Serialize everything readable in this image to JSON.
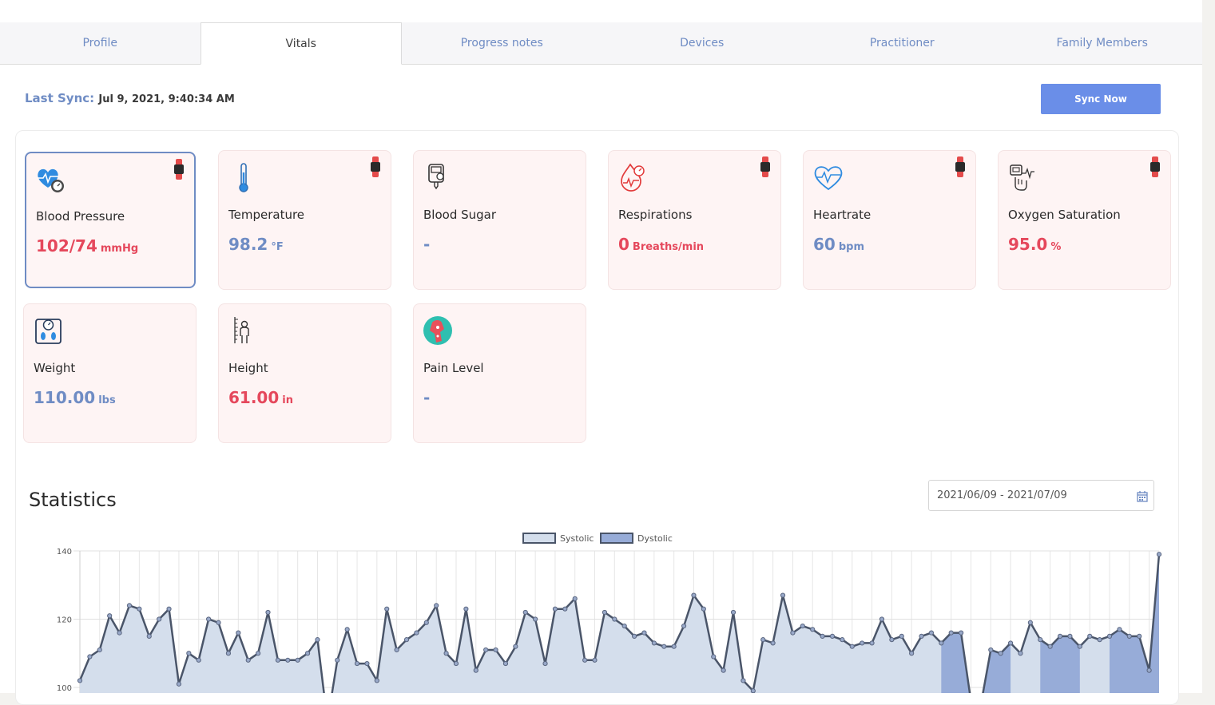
{
  "tabs": [
    "Profile",
    "Vitals",
    "Progress notes",
    "Devices",
    "Practitioner",
    "Family Members"
  ],
  "sync": {
    "label": "Last Sync:",
    "value": "Jul 9, 2021, 9:40:34 AM",
    "button": "Sync Now"
  },
  "cards": [
    {
      "label": "Blood Pressure",
      "value": "102/74",
      "unit": "mmHg",
      "color": "red",
      "icon": "blood-pressure-icon",
      "watch": true
    },
    {
      "label": "Temperature",
      "value": "98.2",
      "unit": "°F",
      "color": "blue",
      "icon": "thermometer-icon",
      "watch": true
    },
    {
      "label": "Blood Sugar",
      "value": "-",
      "unit": "",
      "color": "blue",
      "icon": "glucometer-icon",
      "watch": false
    },
    {
      "label": "Respirations",
      "value": "0",
      "unit": "Breaths/min",
      "color": "red",
      "icon": "respiration-icon",
      "watch": true
    },
    {
      "label": "Heartrate",
      "value": "60",
      "unit": "bpm",
      "color": "blue",
      "icon": "heart-icon",
      "watch": true
    },
    {
      "label": "Oxygen Saturation",
      "value": "95.0",
      "unit": "%",
      "color": "red",
      "icon": "oximeter-icon",
      "watch": true
    },
    {
      "label": "Weight",
      "value": "110.00",
      "unit": "lbs",
      "color": "blue",
      "icon": "scale-icon",
      "watch": false
    },
    {
      "label": "Height",
      "value": "61.00",
      "unit": "in",
      "color": "red",
      "icon": "height-icon",
      "watch": false
    },
    {
      "label": "Pain Level",
      "value": "-",
      "unit": "",
      "color": "blue",
      "icon": "pain-icon",
      "watch": false
    }
  ],
  "statistics": {
    "title": "Statistics",
    "date_range": "2021/06/09 - 2021/07/09"
  },
  "chart_data": {
    "type": "area",
    "legend": [
      "Systolic",
      "Dystolic"
    ],
    "ylim": [
      100,
      140
    ],
    "yticks": [
      140,
      120,
      100
    ],
    "grid": true,
    "series": [
      {
        "name": "Systolic",
        "fill": "#d4deec",
        "values": [
          102,
          109,
          111,
          121,
          116,
          124,
          123,
          115,
          120,
          123,
          101,
          110,
          108,
          120,
          119,
          110,
          116,
          108,
          110,
          122,
          108,
          108,
          108,
          110,
          114,
          90,
          108,
          117,
          107,
          107,
          102,
          123,
          111,
          114,
          116,
          119,
          124,
          110,
          107,
          123,
          105,
          111,
          111,
          107,
          112,
          122,
          120,
          107,
          123,
          123,
          126,
          108,
          108,
          122,
          120,
          118,
          115,
          116,
          113,
          112,
          112,
          118,
          127,
          123,
          109,
          105,
          122,
          102,
          99,
          114,
          113,
          127,
          116,
          118,
          117,
          115,
          115,
          114,
          112,
          113,
          113,
          120,
          114,
          115,
          110,
          115,
          116,
          113,
          116,
          116,
          96,
          95,
          111,
          110,
          113,
          110,
          119,
          114,
          112,
          115,
          115,
          112,
          115,
          114,
          115,
          117,
          115,
          115,
          105,
          139
        ]
      },
      {
        "name": "Dystolic",
        "fill": "#97acd8"
      }
    ]
  }
}
